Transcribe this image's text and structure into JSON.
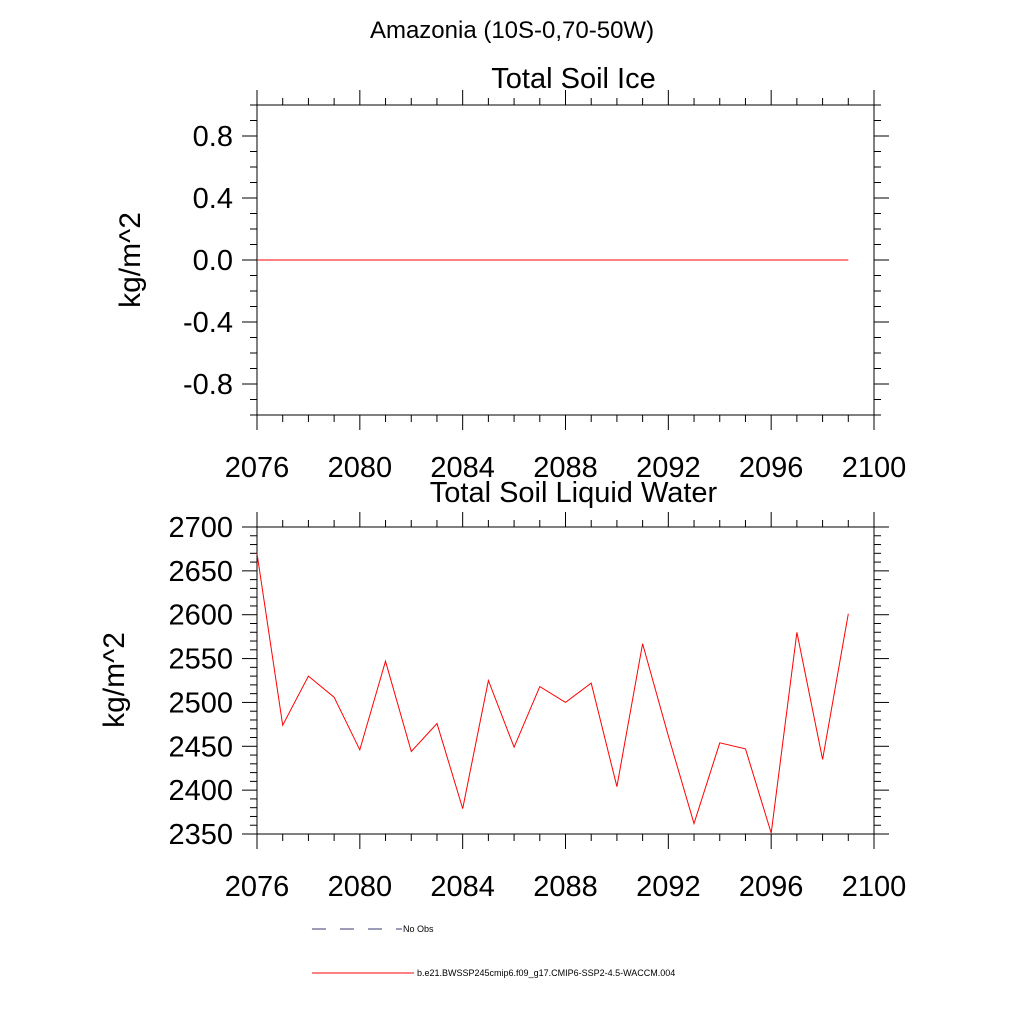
{
  "figure": {
    "main_title": "Amazonia (10S-0,70-50W)"
  },
  "colors": {
    "series": "#ff0000",
    "no_obs": "#3a3a6e",
    "axis": "#000000",
    "background": "#ffffff"
  },
  "chart_data": [
    {
      "type": "line",
      "title": "Total Soil Ice",
      "xlabel": "",
      "ylabel": "kg/m^2",
      "xlim": [
        2076,
        2100
      ],
      "ylim": [
        -1,
        1
      ],
      "x_ticks": [
        2076,
        2080,
        2084,
        2088,
        2092,
        2096,
        2100
      ],
      "x_tick_labels": [
        "2076",
        "2080",
        "2084",
        "2088",
        "2092",
        "2096",
        "2100"
      ],
      "y_ticks": [
        -0.8,
        -0.4,
        0.0,
        0.4,
        0.8
      ],
      "y_tick_labels": [
        "-0.8",
        "-0.4",
        "0.0",
        "0.4",
        "0.8"
      ],
      "grid": false,
      "series": [
        {
          "x": [
            2076,
            2077,
            2078,
            2079,
            2080,
            2081,
            2082,
            2083,
            2084,
            2085,
            2086,
            2087,
            2088,
            2089,
            2090,
            2091,
            2092,
            2093,
            2094,
            2095,
            2096,
            2097,
            2098,
            2099
          ],
          "values": [
            0,
            0,
            0,
            0,
            0,
            0,
            0,
            0,
            0,
            0,
            0,
            0,
            0,
            0,
            0,
            0,
            0,
            0,
            0,
            0,
            0,
            0,
            0,
            0
          ],
          "color": "#ff0000"
        }
      ]
    },
    {
      "type": "line",
      "title": "Total Soil Liquid Water",
      "xlabel": "",
      "ylabel": "kg/m^2",
      "xlim": [
        2076,
        2100
      ],
      "ylim": [
        2350,
        2700
      ],
      "x_ticks": [
        2076,
        2080,
        2084,
        2088,
        2092,
        2096,
        2100
      ],
      "x_tick_labels": [
        "2076",
        "2080",
        "2084",
        "2088",
        "2092",
        "2096",
        "2100"
      ],
      "y_ticks": [
        2350,
        2400,
        2450,
        2500,
        2550,
        2600,
        2650,
        2700
      ],
      "y_tick_labels": [
        "2350",
        "2400",
        "2450",
        "2500",
        "2550",
        "2600",
        "2650",
        "2700"
      ],
      "grid": false,
      "series": [
        {
          "x": [
            2076,
            2077,
            2078,
            2079,
            2080,
            2081,
            2082,
            2083,
            2084,
            2085,
            2086,
            2087,
            2088,
            2089,
            2090,
            2091,
            2092,
            2093,
            2094,
            2095,
            2096,
            2097,
            2098,
            2099
          ],
          "values": [
            2670,
            2474,
            2530,
            2506,
            2446,
            2547,
            2444,
            2476,
            2379,
            2525,
            2449,
            2518,
            2500,
            2522,
            2404,
            2567,
            2462,
            2362,
            2454,
            2447,
            2351,
            2580,
            2435,
            2601
          ],
          "color": "#ff0000"
        }
      ]
    }
  ],
  "legend": {
    "placement": "bottom",
    "items": [
      {
        "label": "No Obs",
        "style": "dashed",
        "color": "#3a3a6e"
      },
      {
        "label": "b.e21.BWSSP245cmip6.f09_g17.CMIP6-SSP2-4.5-WACCM.004",
        "style": "solid",
        "color": "#ff0000"
      }
    ]
  }
}
